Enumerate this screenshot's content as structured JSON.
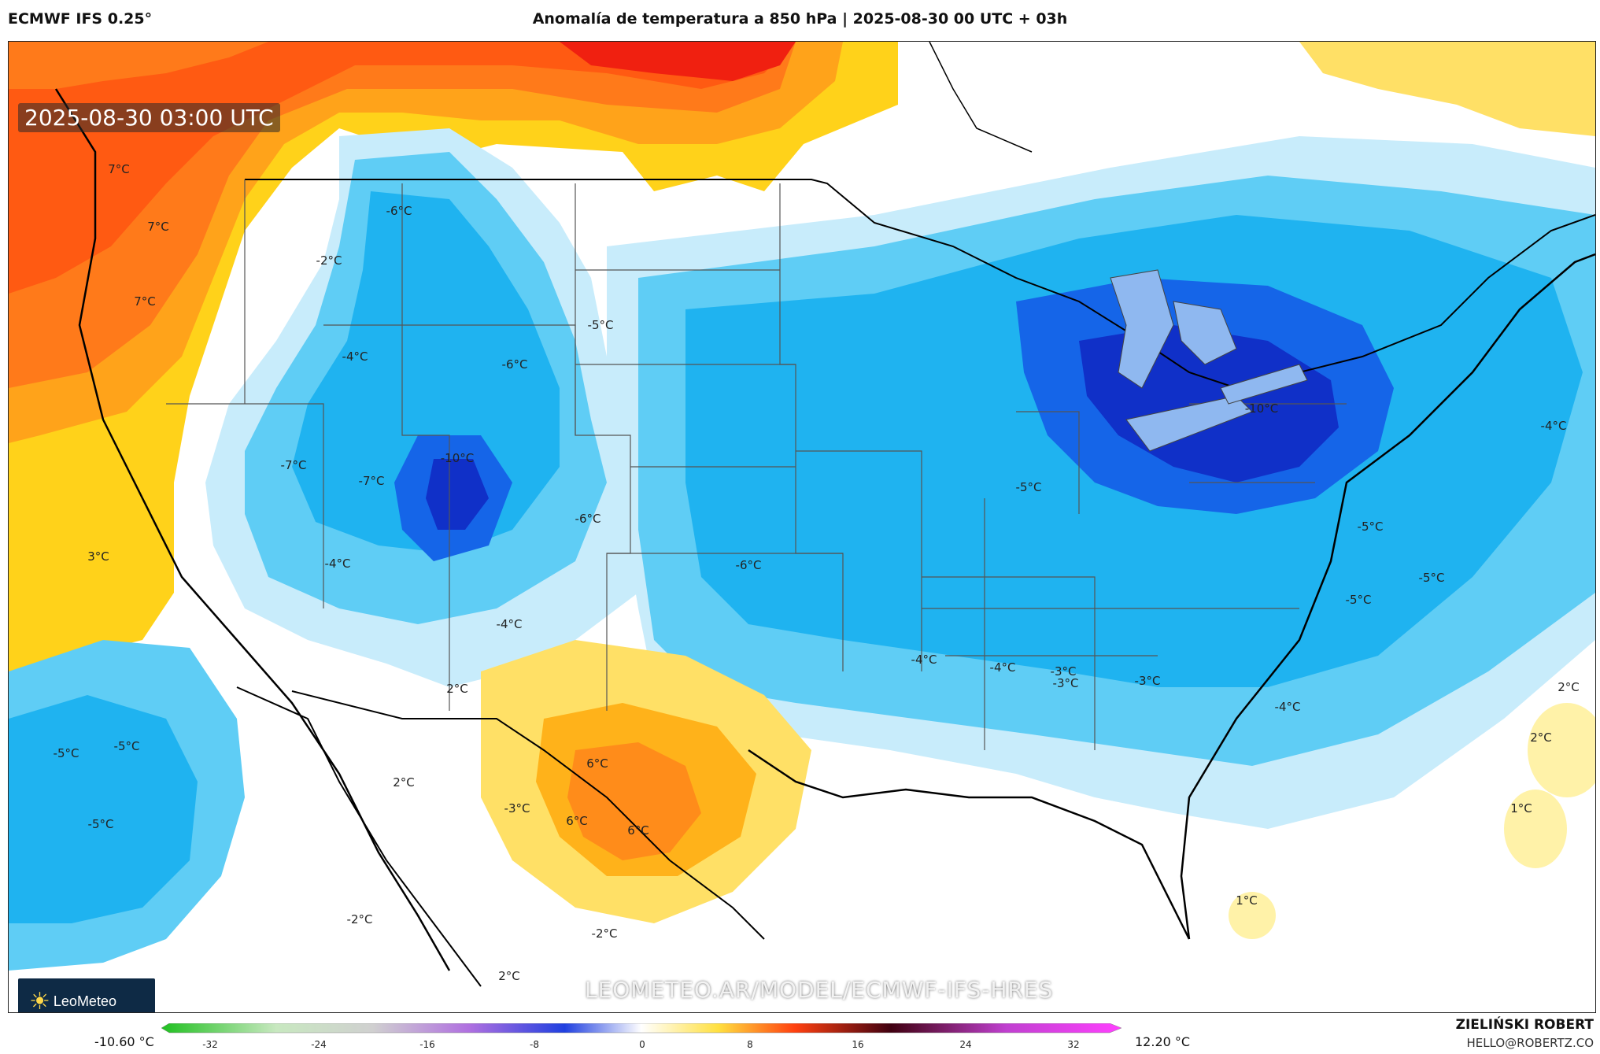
{
  "header": {
    "model": "ECMWF IFS 0.25°",
    "title": "Anomalía de temperatura a 850 hPa | 2025-08-30 00 UTC + 03h"
  },
  "map": {
    "valid_time": "2025-08-30 03:00 UTC",
    "watermark": "LEOMETEO.AR/MODEL/ECMWF-IFS-HRES",
    "logo_text": "LeoMeteo",
    "labels": [
      "7°C",
      "7°C",
      "7°C",
      "-6°C",
      "-2°C",
      "-5°C",
      "-4°C",
      "-6°C",
      "-7°C",
      "-7°C",
      "-10°C",
      "-6°C",
      "3°C",
      "-4°C",
      "-6°C",
      "-4°C",
      "2°C",
      "-5°C",
      "-5°C",
      "-5°C",
      "2°C",
      "-3°C",
      "6°C",
      "6°C",
      "6°C",
      "-2°C",
      "-2°C",
      "2°C",
      "-10°C",
      "-5°C",
      "-4°C",
      "-4°C",
      "-3°C",
      "-3°C",
      "-3°C",
      "-5°C",
      "-5°C",
      "-5°C",
      "-4°C",
      "2°C",
      "2°C",
      "1°C",
      "1°C",
      "-4°C"
    ]
  },
  "colorbar": {
    "min_label": "-10.60 °C",
    "max_label": "12.20 °C",
    "ticks": [
      "-32",
      "-24",
      "-16",
      "-8",
      "0",
      "8",
      "16",
      "24",
      "32"
    ]
  },
  "credits": {
    "name": "ZIELIŃSKI ROBERT",
    "email": "HELLO@ROBERTZ.CO"
  },
  "palette": {
    "strong_warm": "#f03010",
    "warm": "#ff8c1a",
    "mild_warm": "#ffd21a",
    "light_warm": "#fff2a8",
    "light_cold": "#c8ecfb",
    "cold": "#5fcdf5",
    "mid_cold": "#1fb3f0",
    "strong_cold": "#1565e8",
    "deep_cold": "#1030c8"
  }
}
